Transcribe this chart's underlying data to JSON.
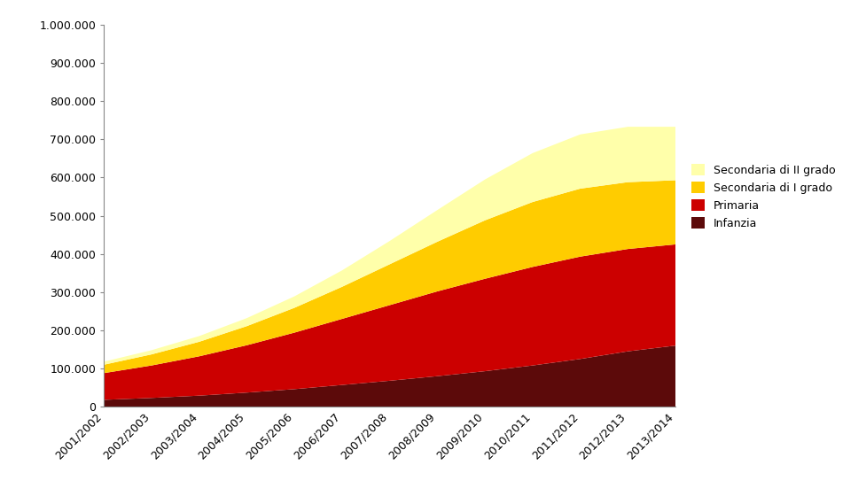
{
  "years": [
    "2001/2002",
    "2002/2003",
    "2003/2004",
    "2004/2005",
    "2005/2006",
    "2006/2007",
    "2007/2008",
    "2008/2009",
    "2009/2010",
    "2010/2011",
    "2011/2012",
    "2012/2013",
    "2013/2014"
  ],
  "infanzia": [
    18000,
    23000,
    29000,
    37000,
    46000,
    57000,
    68000,
    80000,
    93000,
    108000,
    125000,
    145000,
    160000
  ],
  "primaria": [
    70000,
    85000,
    103000,
    124000,
    148000,
    173000,
    198000,
    222000,
    242000,
    258000,
    268000,
    268000,
    265000
  ],
  "secondaria_I": [
    22000,
    29000,
    38000,
    50000,
    65000,
    84000,
    107000,
    130000,
    153000,
    170000,
    178000,
    175000,
    168000
  ],
  "secondaria_II": [
    8000,
    11000,
    15000,
    21000,
    30000,
    43000,
    61000,
    83000,
    107000,
    128000,
    142000,
    145000,
    140000
  ],
  "colors": {
    "infanzia": "#5c0a0a",
    "primaria": "#cc0000",
    "secondaria_I": "#ffcc00",
    "secondaria_II": "#ffffaa"
  },
  "ylim": [
    0,
    1000000
  ],
  "yticks": [
    0,
    100000,
    200000,
    300000,
    400000,
    500000,
    600000,
    700000,
    800000,
    900000,
    1000000
  ],
  "figsize": [
    9.77,
    5.6
  ],
  "dpi": 100
}
